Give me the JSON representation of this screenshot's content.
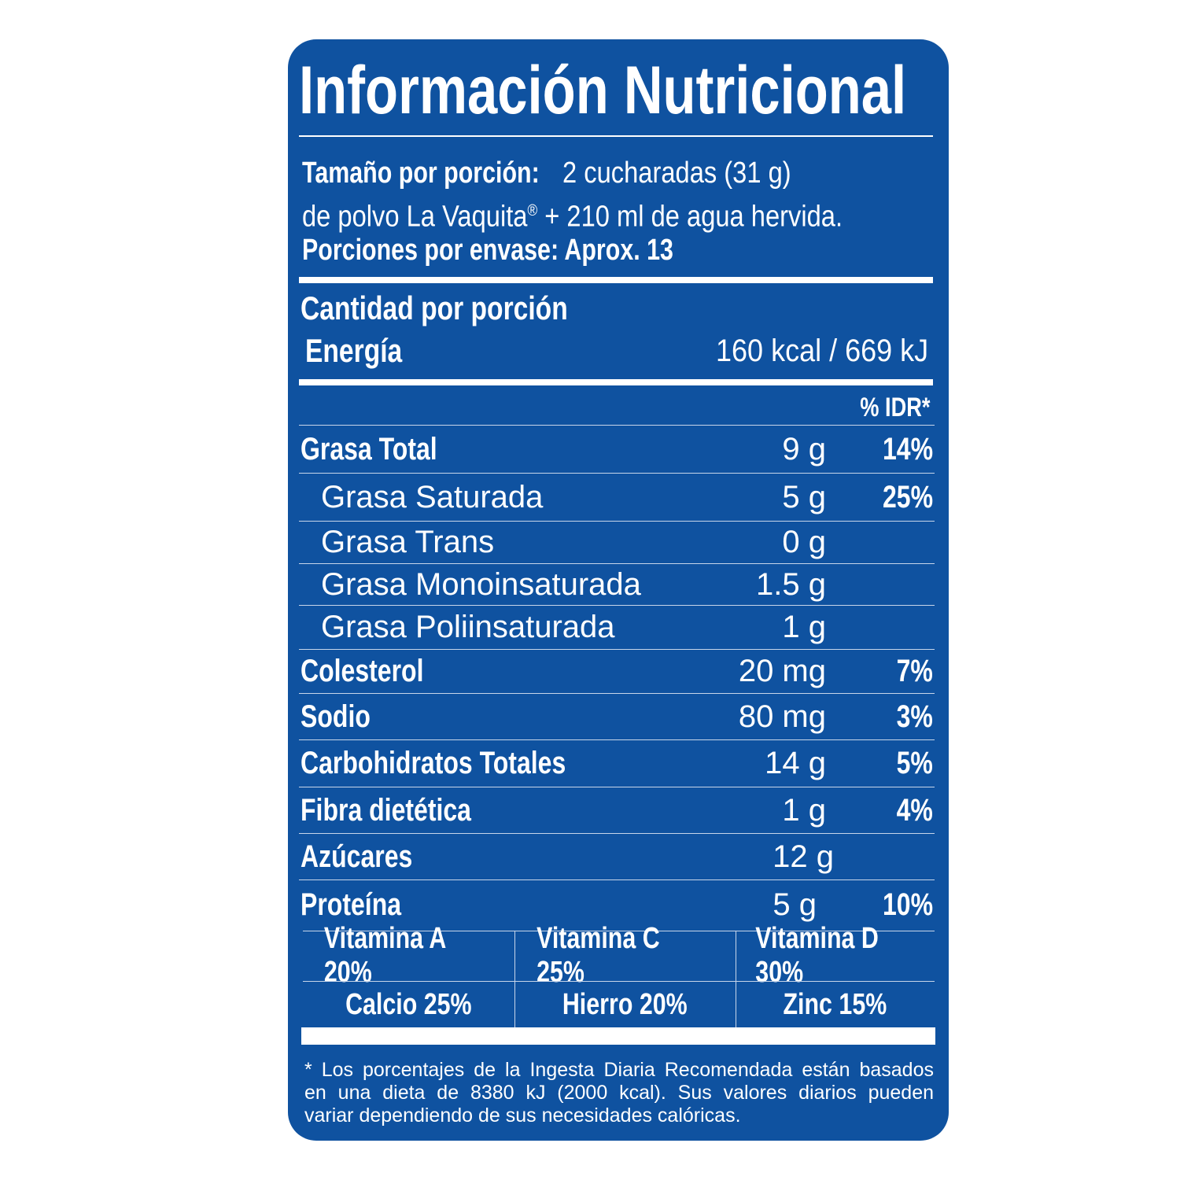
{
  "title": "Información Nutricional",
  "serving": {
    "size_label": "Tamaño por porción:",
    "size_value": "2 cucharadas (31 g)",
    "size_line2": "de polvo La Vaquita",
    "registered": "®",
    "size_line2_end": " + 210 ml de agua hervida.",
    "servings_per_container": "Porciones por envase: Aprox. 13"
  },
  "amount_per_serving": "Cantidad por porción",
  "energy": {
    "label": "Energía",
    "value": "160 kcal / 669 kJ"
  },
  "idr_header": "% IDR*",
  "nutrients": [
    {
      "name": "Grasa Total",
      "amount": "9 g",
      "pct": "14%"
    },
    {
      "name": "Grasa Saturada",
      "amount": "5 g",
      "pct": "25%"
    },
    {
      "name": "Grasa Trans",
      "amount": "0 g",
      "pct": ""
    },
    {
      "name": "Grasa Monoinsaturada",
      "amount": "1.5 g",
      "pct": ""
    },
    {
      "name": "Grasa Poliinsaturada",
      "amount": "1 g",
      "pct": ""
    },
    {
      "name": "Colesterol",
      "amount": "20 mg",
      "pct": "7%"
    },
    {
      "name": "Sodio",
      "amount": "80 mg",
      "pct": "3%"
    },
    {
      "name": "Carbohidratos Totales",
      "amount": "14 g",
      "pct": "5%"
    },
    {
      "name": "Fibra dietética",
      "amount": "1 g",
      "pct": "4%"
    },
    {
      "name": "Azúcares",
      "amount": "12 g",
      "pct": ""
    },
    {
      "name": "Proteína",
      "amount": "5 g",
      "pct": "10%"
    }
  ],
  "vitamins": [
    "Vitamina A 20%",
    "Vitamina C 25%",
    "Vitamina D 30%",
    "Calcio 25%",
    "Hierro 20%",
    "Zinc 15%"
  ],
  "footnote": [
    "*  Los porcentajes de la Ingesta Diaria Recomendada están basados",
    "en una dieta de 8380 kJ (2000 kcal). Sus valores diarios pueden",
    "variar dependiendo de sus necesidades calóricas."
  ],
  "colors": {
    "panel": "#0f52a0",
    "text": "#ffffff"
  }
}
